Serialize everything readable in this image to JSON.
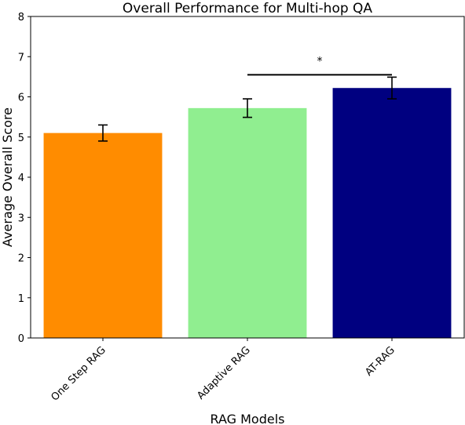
{
  "chart_data": {
    "type": "bar",
    "title": "Overall Performance for Multi-hop QA",
    "xlabel": "RAG Models",
    "ylabel": "Average Overall Score",
    "categories": [
      "One Step RAG",
      "Adaptive RAG",
      "AT-RAG"
    ],
    "values": [
      5.1,
      5.72,
      6.22
    ],
    "errors": [
      0.2,
      0.23,
      0.27
    ],
    "colors": [
      "#ff8c00",
      "#90ee90",
      "#000080"
    ],
    "ylim": [
      0,
      8
    ],
    "yticks": [
      "0",
      "1",
      "2",
      "3",
      "4",
      "5",
      "6",
      "7",
      "8"
    ],
    "grid": false,
    "significance": {
      "from_category": 1,
      "to_category": 2,
      "level": 6.55,
      "label": "*"
    }
  }
}
